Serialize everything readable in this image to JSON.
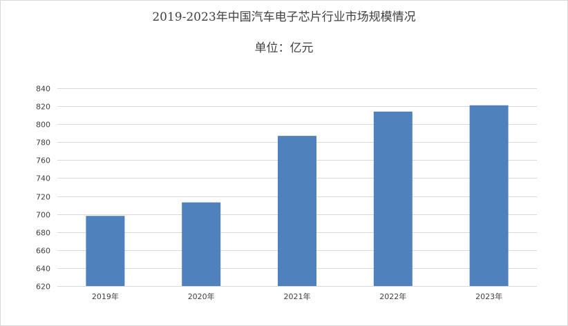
{
  "chart_data": {
    "type": "bar",
    "title": "2019-2023年中国汽车电子芯片行业市场规模情况",
    "subtitle": "单位：亿元",
    "categories": [
      "2019年",
      "2020年",
      "2021年",
      "2022年",
      "2023年"
    ],
    "values": [
      698,
      713,
      787,
      814,
      821
    ],
    "ylim": [
      620,
      840
    ],
    "yticks": [
      620,
      640,
      660,
      680,
      700,
      720,
      740,
      760,
      780,
      800,
      820,
      840
    ],
    "grid": true,
    "legend": "none",
    "bar_color": "#4f81bd",
    "grid_color": "#d9d9d9"
  }
}
